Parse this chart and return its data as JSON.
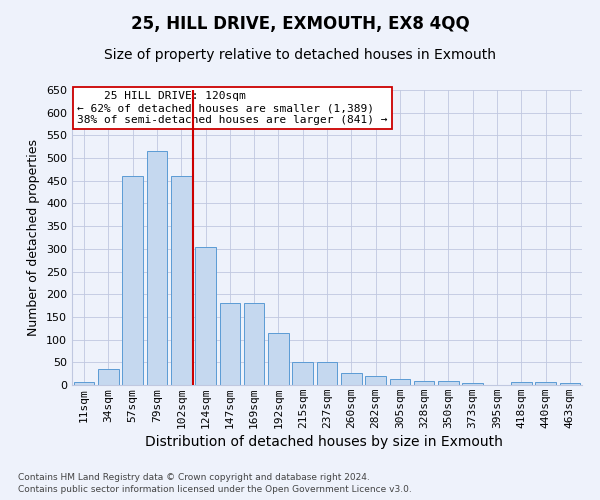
{
  "title": "25, HILL DRIVE, EXMOUTH, EX8 4QQ",
  "subtitle": "Size of property relative to detached houses in Exmouth",
  "xlabel": "Distribution of detached houses by size in Exmouth",
  "ylabel": "Number of detached properties",
  "categories": [
    "11sqm",
    "34sqm",
    "57sqm",
    "79sqm",
    "102sqm",
    "124sqm",
    "147sqm",
    "169sqm",
    "192sqm",
    "215sqm",
    "237sqm",
    "260sqm",
    "282sqm",
    "305sqm",
    "328sqm",
    "350sqm",
    "373sqm",
    "395sqm",
    "418sqm",
    "440sqm",
    "463sqm"
  ],
  "values": [
    7,
    35,
    460,
    515,
    460,
    305,
    180,
    180,
    115,
    50,
    50,
    27,
    20,
    14,
    9,
    9,
    4,
    1,
    7,
    7,
    4
  ],
  "bar_color": "#c5d8ef",
  "bar_edge_color": "#5b9bd5",
  "vline_x_index": 5,
  "vline_color": "#cc0000",
  "annotation_line1": "    25 HILL DRIVE: 120sqm    ",
  "annotation_line2": "← 62% of detached houses are smaller (1,389)",
  "annotation_line3": "38% of semi-detached houses are larger (841) →",
  "annotation_box_color": "#ffffff",
  "annotation_box_edge": "#cc0000",
  "ylim": [
    0,
    650
  ],
  "yticks": [
    0,
    50,
    100,
    150,
    200,
    250,
    300,
    350,
    400,
    450,
    500,
    550,
    600,
    650
  ],
  "footnote1": "Contains HM Land Registry data © Crown copyright and database right 2024.",
  "footnote2": "Contains public sector information licensed under the Open Government Licence v3.0.",
  "title_fontsize": 12,
  "subtitle_fontsize": 10,
  "xlabel_fontsize": 10,
  "ylabel_fontsize": 9,
  "tick_fontsize": 8,
  "annotation_fontsize": 8,
  "background_color": "#eef2fb",
  "plot_bg_color": "#eef2fb",
  "grid_color": "#c0c8e0"
}
